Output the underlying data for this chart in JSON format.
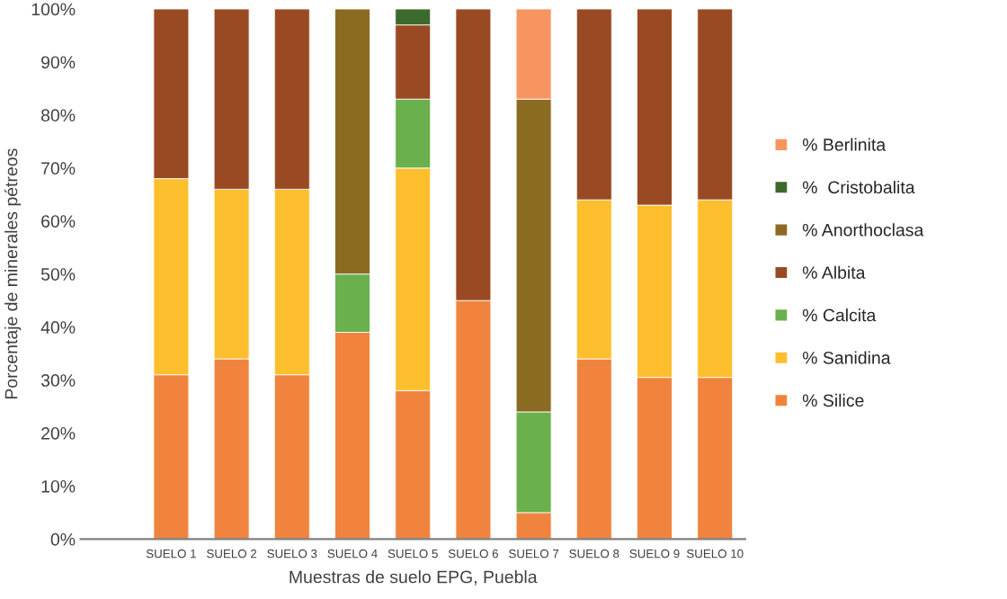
{
  "chart_data": {
    "type": "bar",
    "stacked": true,
    "xlabel": "Muestras de suelo EPG, Puebla",
    "ylabel": "Porcentaje de minerales pétreos",
    "categories": [
      null,
      "SUELO 1",
      "SUELO 2",
      "SUELO 3",
      "SUELO 4",
      "SUELO 5",
      "SUELO 6",
      "SUELO 7",
      "SUELO 8",
      "SUELO 9",
      "SUELO 10"
    ],
    "ylim": [
      0,
      100
    ],
    "yticks": [
      {
        "value": 0,
        "label": "0%"
      },
      {
        "value": 10,
        "label": "10%"
      },
      {
        "value": 20,
        "label": "20%"
      },
      {
        "value": 30,
        "label": "30%"
      },
      {
        "value": 40,
        "label": "40%"
      },
      {
        "value": 50,
        "label": "50%"
      },
      {
        "value": 60,
        "label": "60%"
      },
      {
        "value": 70,
        "label": "70%"
      },
      {
        "value": 80,
        "label": "80%"
      },
      {
        "value": 90,
        "label": "90%"
      },
      {
        "value": 100,
        "label": "100%"
      }
    ],
    "grid": false,
    "legend": "right",
    "series": [
      {
        "name": "% Silice",
        "color": "#f0843e",
        "values": [
          null,
          31,
          34,
          31,
          39,
          28,
          45,
          5,
          34,
          30.5,
          30.5
        ]
      },
      {
        "name": "% Sanidina",
        "color": "#fdbf2d",
        "values": [
          null,
          37,
          32,
          35,
          null,
          42,
          null,
          null,
          30,
          32.5,
          33.5
        ]
      },
      {
        "name": "% Calcita",
        "color": "#6ab04c",
        "values": [
          null,
          null,
          null,
          null,
          11,
          13,
          null,
          19,
          null,
          null,
          null
        ]
      },
      {
        "name": "% Albita",
        "color": "#9a4a22",
        "values": [
          null,
          32,
          34,
          34,
          null,
          14,
          55,
          null,
          36,
          37,
          36
        ]
      },
      {
        "name": "% Anorthoclasa",
        "color": "#8b6a22",
        "values": [
          null,
          null,
          null,
          null,
          50,
          null,
          null,
          59,
          null,
          null,
          null
        ]
      },
      {
        "name": "%  Cristobalita",
        "color": "#3c6a2d",
        "values": [
          null,
          null,
          null,
          null,
          null,
          3,
          null,
          null,
          null,
          null,
          null
        ]
      },
      {
        "name": "% Berlinita",
        "color": "#f6955f",
        "values": [
          null,
          null,
          null,
          null,
          null,
          null,
          null,
          17,
          null,
          null,
          null
        ]
      }
    ]
  }
}
